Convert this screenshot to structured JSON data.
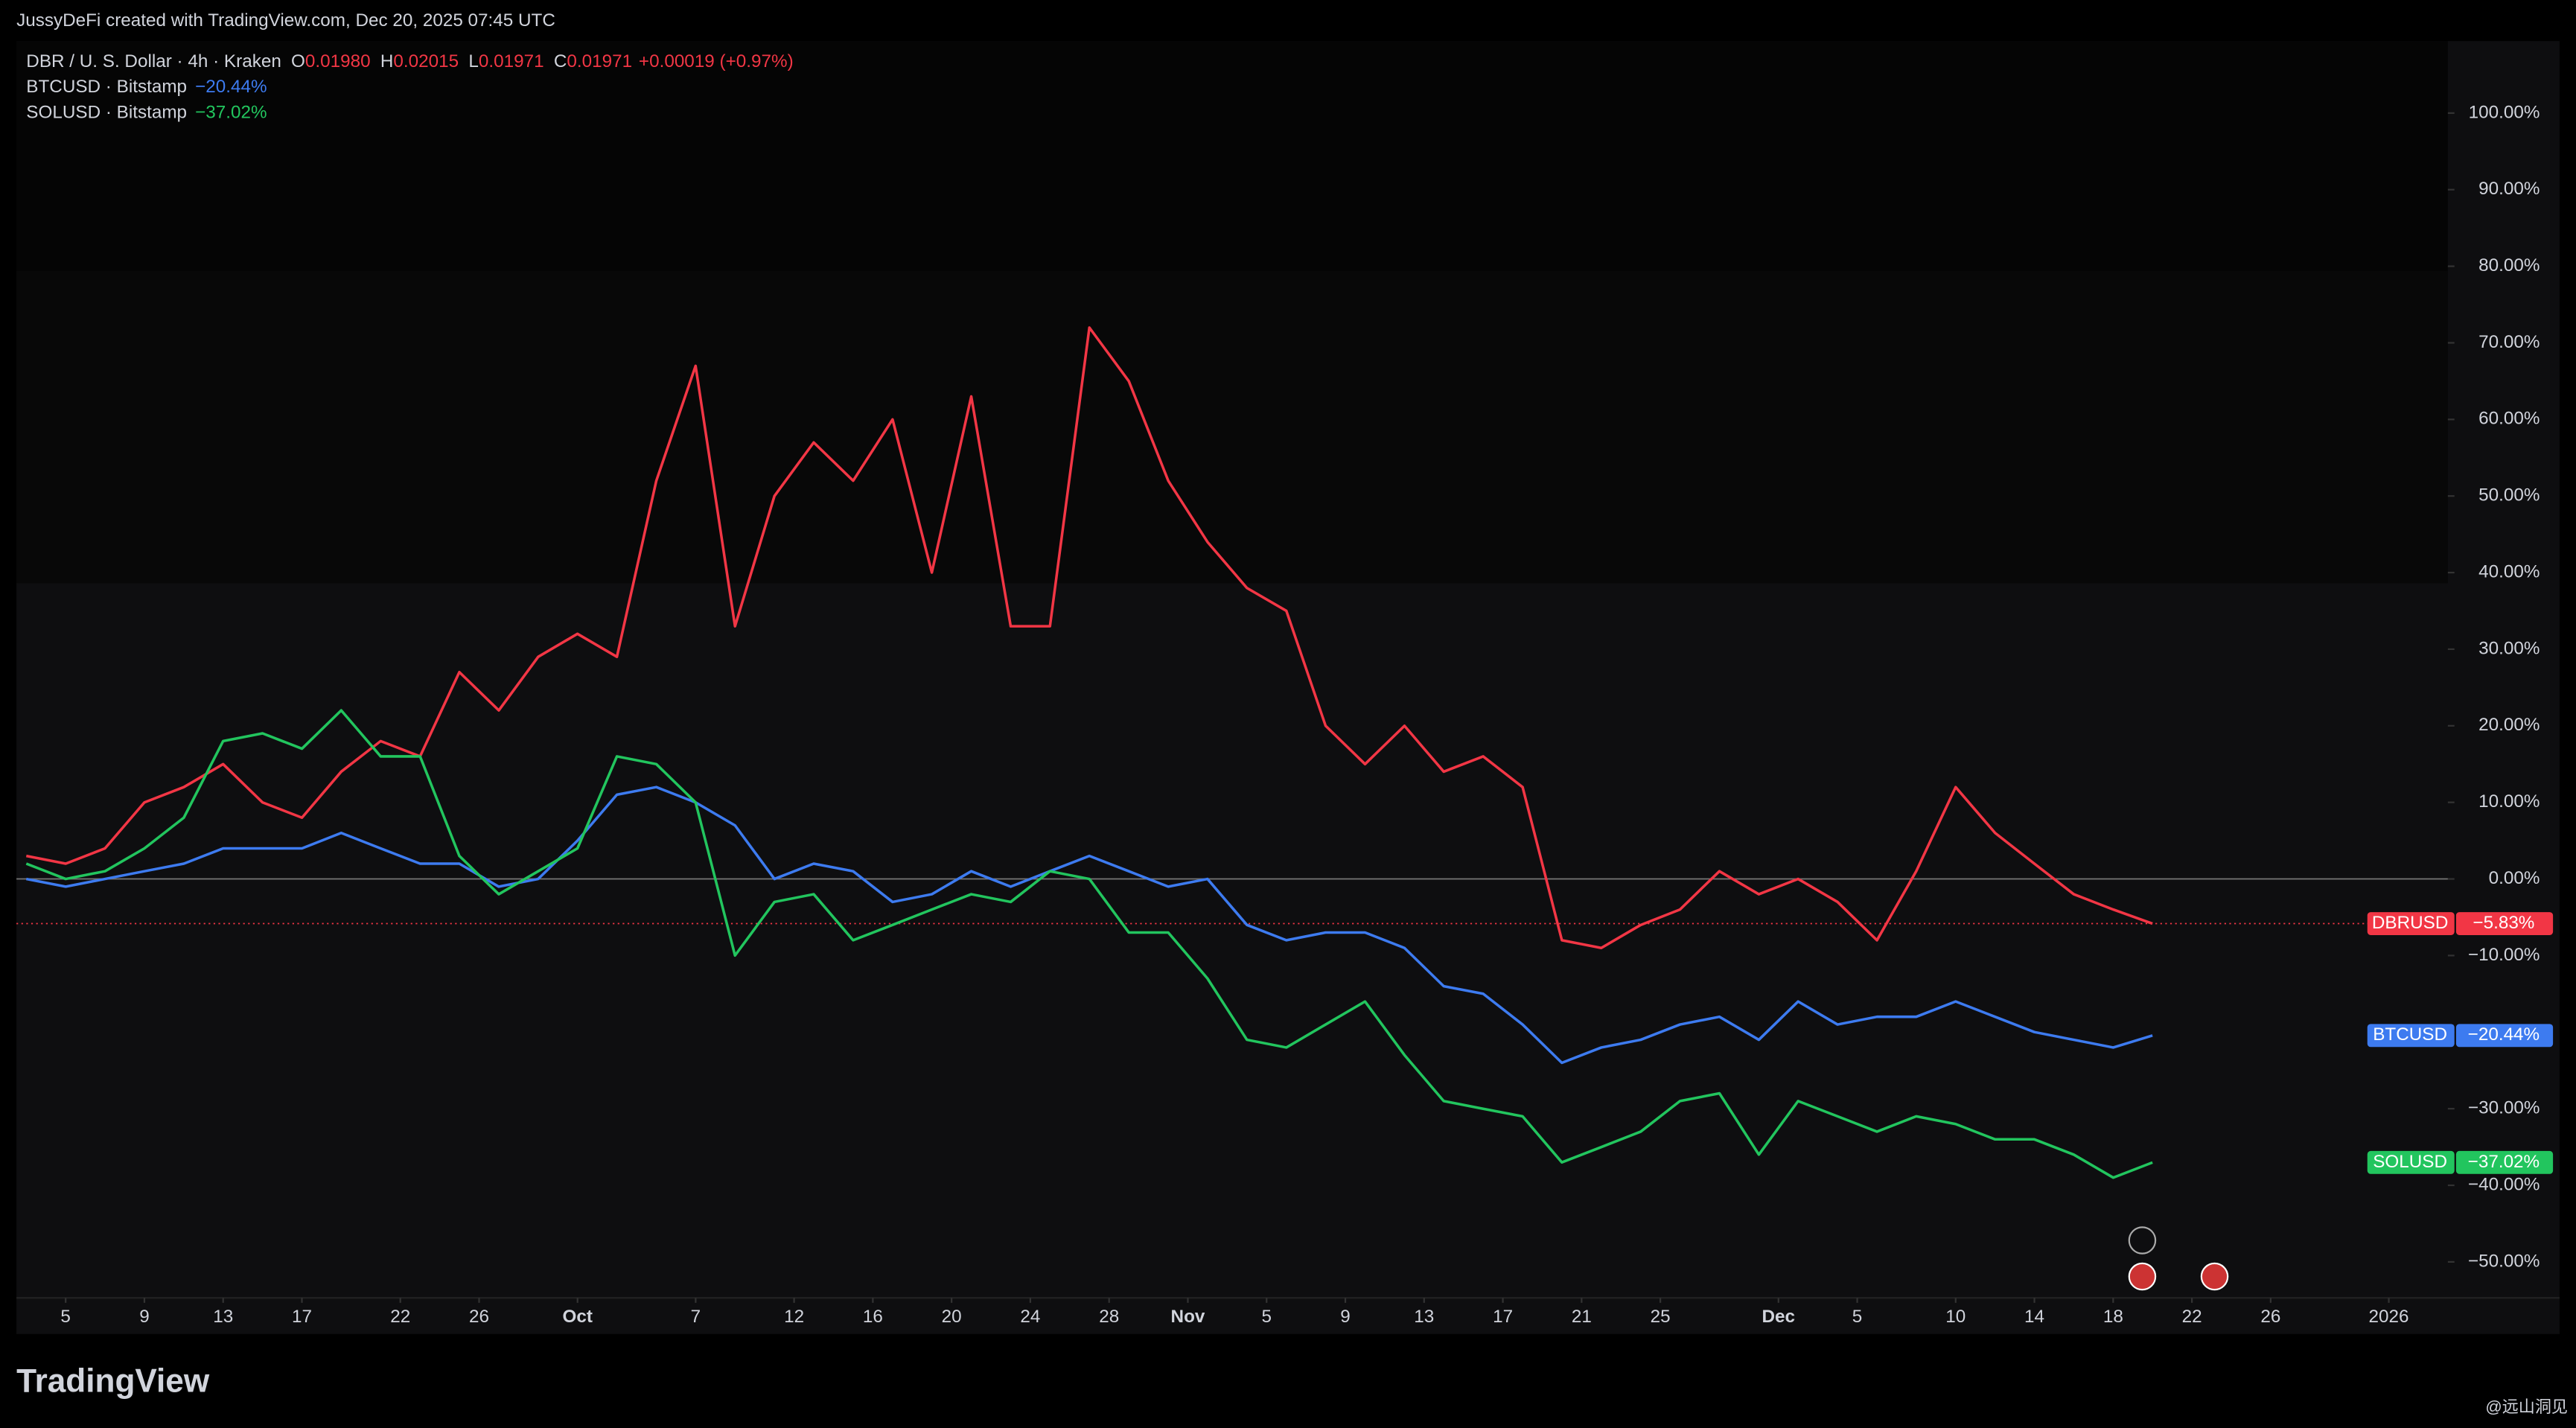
{
  "header": {
    "attribution": "JussyDeFi created with TradingView.com, Dec 20, 2025 07:45 UTC"
  },
  "chart_data": {
    "type": "line",
    "quote": [
      {
        "key": "O",
        "value": "0.01980"
      },
      {
        "key": "H",
        "value": "0.02015"
      },
      {
        "key": "L",
        "value": "0.01971"
      },
      {
        "key": "C",
        "value": "0.01971"
      }
    ],
    "change": "+0.00019 (+0.97%)",
    "x": [
      2,
      4,
      6,
      8,
      10,
      12,
      14,
      16,
      18,
      20,
      22,
      24,
      26,
      28,
      30,
      32,
      34,
      36,
      38,
      40,
      42,
      44,
      46,
      48,
      50,
      52,
      54,
      56,
      58,
      60,
      62,
      64,
      66,
      68,
      70,
      72,
      74,
      76,
      78,
      80,
      82,
      84,
      86,
      88,
      90,
      92,
      94,
      96,
      98,
      100,
      102,
      104,
      106,
      108,
      110
    ],
    "series": [
      {
        "name": "DBRUSD",
        "legend": "DBR / U. S. Dollar · 4h · Kraken",
        "color": "#f23645",
        "values": [
          3,
          2,
          4,
          10,
          12,
          15,
          10,
          8,
          14,
          18,
          16,
          27,
          22,
          29,
          32,
          29,
          52,
          67,
          33,
          50,
          57,
          52,
          60,
          40,
          63,
          33,
          33,
          72,
          65,
          52,
          44,
          38,
          35,
          20,
          15,
          20,
          14,
          16,
          12,
          -8,
          -9,
          -6,
          -4,
          1,
          -2,
          0,
          -3,
          -8,
          1,
          12,
          6,
          2,
          -2,
          -4,
          -5.83
        ],
        "value_labels": [
          null,
          null,
          null,
          null,
          null,
          null,
          null,
          null,
          null,
          null,
          null,
          null,
          null,
          null,
          null,
          null,
          null,
          null,
          null,
          null,
          null,
          null,
          null,
          null,
          null,
          null,
          null,
          null,
          null,
          null,
          null,
          null,
          null,
          null,
          null,
          null,
          null,
          null,
          null,
          null,
          null,
          null,
          null,
          null,
          null,
          null,
          null,
          null,
          null,
          null,
          null,
          null,
          null,
          null,
          "−5.83%"
        ]
      },
      {
        "name": "BTCUSD",
        "legend": "BTCUSD · Bitstamp",
        "color": "#3d7bf0",
        "values": [
          0,
          -1,
          0,
          1,
          2,
          4,
          4,
          4,
          6,
          4,
          2,
          2,
          -1,
          0,
          5,
          11,
          12,
          10,
          7,
          0,
          2,
          1,
          -3,
          -2,
          1,
          -1,
          1,
          3,
          1,
          -1,
          0,
          -6,
          -8,
          -7,
          -7,
          -9,
          -14,
          -15,
          -19,
          -24,
          -22,
          -21,
          -19,
          -18,
          -21,
          -16,
          -19,
          -18,
          -18,
          -16,
          -18,
          -20,
          -21,
          -22,
          -20.44
        ],
        "value_labels": [
          null,
          null,
          null,
          null,
          null,
          null,
          null,
          null,
          null,
          null,
          null,
          null,
          null,
          null,
          null,
          null,
          null,
          null,
          null,
          null,
          null,
          null,
          null,
          null,
          null,
          null,
          null,
          null,
          null,
          null,
          null,
          null,
          null,
          null,
          null,
          null,
          null,
          null,
          null,
          null,
          null,
          null,
          null,
          null,
          null,
          null,
          null,
          null,
          null,
          null,
          null,
          null,
          null,
          null,
          "−20.44%"
        ]
      },
      {
        "name": "SOLUSD",
        "legend": "SOLUSD · Bitstamp",
        "color": "#22c55e",
        "values": [
          2,
          0,
          1,
          4,
          8,
          18,
          19,
          17,
          22,
          16,
          16,
          3,
          -2,
          1,
          4,
          16,
          15,
          10,
          -10,
          -3,
          -2,
          -8,
          -6,
          -4,
          -2,
          -3,
          1,
          0,
          -7,
          -7,
          -13,
          -21,
          -22,
          -19,
          -16,
          -23,
          -29,
          -30,
          -31,
          -37,
          -35,
          -33,
          -29,
          -28,
          -36,
          -29,
          -31,
          -33,
          -31,
          -32,
          -34,
          -34,
          -36,
          -39,
          -37.02
        ],
        "value_labels": [
          null,
          null,
          null,
          null,
          null,
          null,
          null,
          null,
          null,
          null,
          null,
          null,
          null,
          null,
          null,
          null,
          null,
          null,
          null,
          null,
          null,
          null,
          null,
          null,
          null,
          null,
          null,
          null,
          null,
          null,
          null,
          null,
          null,
          null,
          null,
          null,
          null,
          null,
          null,
          null,
          null,
          null,
          null,
          null,
          null,
          null,
          null,
          null,
          null,
          null,
          null,
          null,
          null,
          null,
          "−37.02%"
        ]
      }
    ],
    "xlim": [
      1.5,
      125
    ],
    "xticks": [
      {
        "value": 4,
        "label": "5"
      },
      {
        "value": 8,
        "label": "9"
      },
      {
        "value": 12,
        "label": "13"
      },
      {
        "value": 16,
        "label": "17"
      },
      {
        "value": 21,
        "label": "22"
      },
      {
        "value": 25,
        "label": "26"
      },
      {
        "value": 30,
        "label": "Oct"
      },
      {
        "value": 36,
        "label": "7"
      },
      {
        "value": 41,
        "label": "12"
      },
      {
        "value": 45,
        "label": "16"
      },
      {
        "value": 49,
        "label": "20"
      },
      {
        "value": 53,
        "label": "24"
      },
      {
        "value": 57,
        "label": "28"
      },
      {
        "value": 61,
        "label": "Nov"
      },
      {
        "value": 65,
        "label": "5"
      },
      {
        "value": 69,
        "label": "9"
      },
      {
        "value": 73,
        "label": "13"
      },
      {
        "value": 77,
        "label": "17"
      },
      {
        "value": 81,
        "label": "21"
      },
      {
        "value": 85,
        "label": "25"
      },
      {
        "value": 91,
        "label": "Dec"
      },
      {
        "value": 95,
        "label": "5"
      },
      {
        "value": 100,
        "label": "10"
      },
      {
        "value": 104,
        "label": "14"
      },
      {
        "value": 108,
        "label": "18"
      },
      {
        "value": 112,
        "label": "22"
      },
      {
        "value": 116,
        "label": "26"
      },
      {
        "value": 122,
        "label": "2026"
      }
    ],
    "ylim": [
      -54.7,
      109.4
    ],
    "yticks": [
      {
        "value": -50,
        "label": "−50.00%"
      },
      {
        "value": -40,
        "label": "−40.00%"
      },
      {
        "value": -30,
        "label": "−30.00%"
      },
      {
        "value": -20,
        "label": "−20.00%"
      },
      {
        "value": -10,
        "label": "−10.00%"
      },
      {
        "value": 0,
        "label": "0.00%"
      },
      {
        "value": 10,
        "label": "10.00%"
      },
      {
        "value": 20,
        "label": "20.00%"
      },
      {
        "value": 30,
        "label": "30.00%"
      },
      {
        "value": 40,
        "label": "40.00%"
      },
      {
        "value": 50,
        "label": "50.00%"
      },
      {
        "value": 60,
        "label": "60.00%"
      },
      {
        "value": 70,
        "label": "70.00%"
      },
      {
        "value": 80,
        "label": "80.00%"
      },
      {
        "value": 90,
        "label": "90.00%"
      },
      {
        "value": 100,
        "label": "100.00%"
      }
    ],
    "grid": false
  },
  "footer": {
    "logo": "TradingView",
    "watermark": "@远山洞见"
  }
}
